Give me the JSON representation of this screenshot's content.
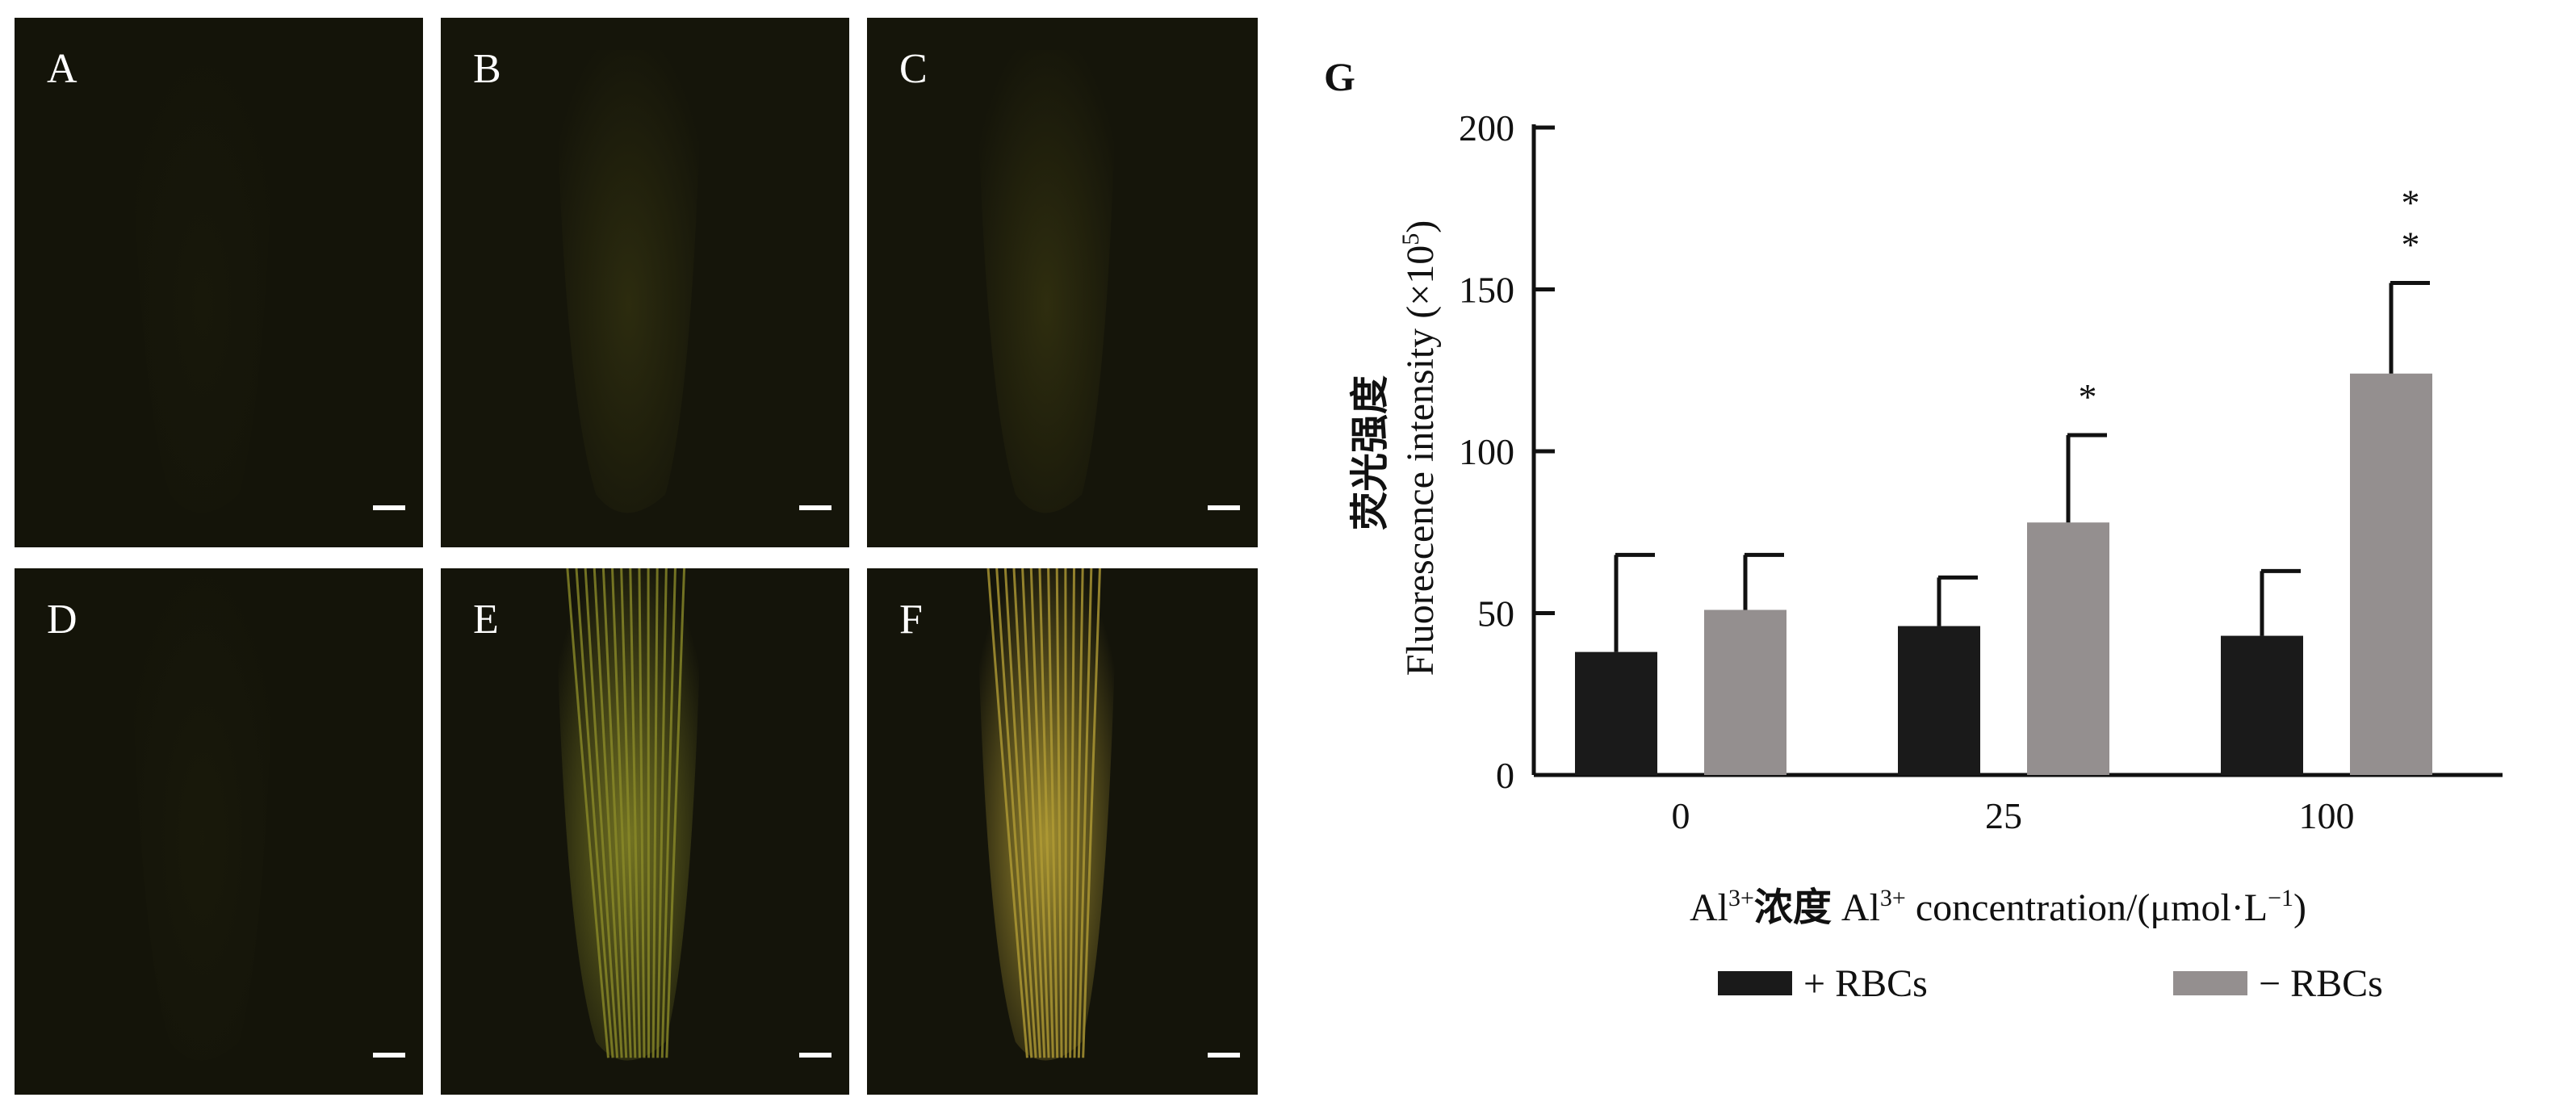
{
  "panels": [
    {
      "label": "A",
      "glow": "#1f1f0c",
      "strength": 0.05
    },
    {
      "label": "B",
      "glow": "#3d3c12",
      "strength": 0.45
    },
    {
      "label": "C",
      "glow": "#3f3d12",
      "strength": 0.5
    },
    {
      "label": "D",
      "glow": "#21210d",
      "strength": 0.08
    },
    {
      "label": "E",
      "glow": "#8a8a28",
      "strength": 0.85
    },
    {
      "label": "F",
      "glow": "#b09b34",
      "strength": 1.0
    }
  ],
  "chart_data": {
    "type": "bar",
    "panel_label": "G",
    "categories": [
      "0",
      "25",
      "100"
    ],
    "series": [
      {
        "name": "+ RBCs",
        "color": "#1a1a1a",
        "values": [
          38,
          46,
          43
        ],
        "errors": [
          30,
          15,
          20
        ],
        "significance": [
          "",
          "",
          ""
        ]
      },
      {
        "name": "− RBCs",
        "color": "#948f8f",
        "values": [
          51,
          78,
          124
        ],
        "errors": [
          17,
          27,
          28
        ],
        "significance": [
          "",
          "*",
          "**"
        ]
      }
    ],
    "ylabel_cn": "荧光强度",
    "ylabel_en": "Fluorescence intensity (×10",
    "ylabel_sup": "5",
    "ylabel_end": ")",
    "xlabel_pre": "Al",
    "xlabel_sup1": "3+",
    "xlabel_cn": "浓度",
    "xlabel_mid": " Al",
    "xlabel_sup2": "3+",
    "xlabel_post": " concentration/(μmol·L",
    "xlabel_sup3": "−1",
    "xlabel_end": ")",
    "yticks": [
      0,
      50,
      100,
      150,
      200
    ],
    "ylim": [
      0,
      200
    ],
    "legend": [
      {
        "label": "+ RBCs",
        "color": "#1a1a1a"
      },
      {
        "label": "− RBCs",
        "color": "#948f8f"
      }
    ]
  }
}
